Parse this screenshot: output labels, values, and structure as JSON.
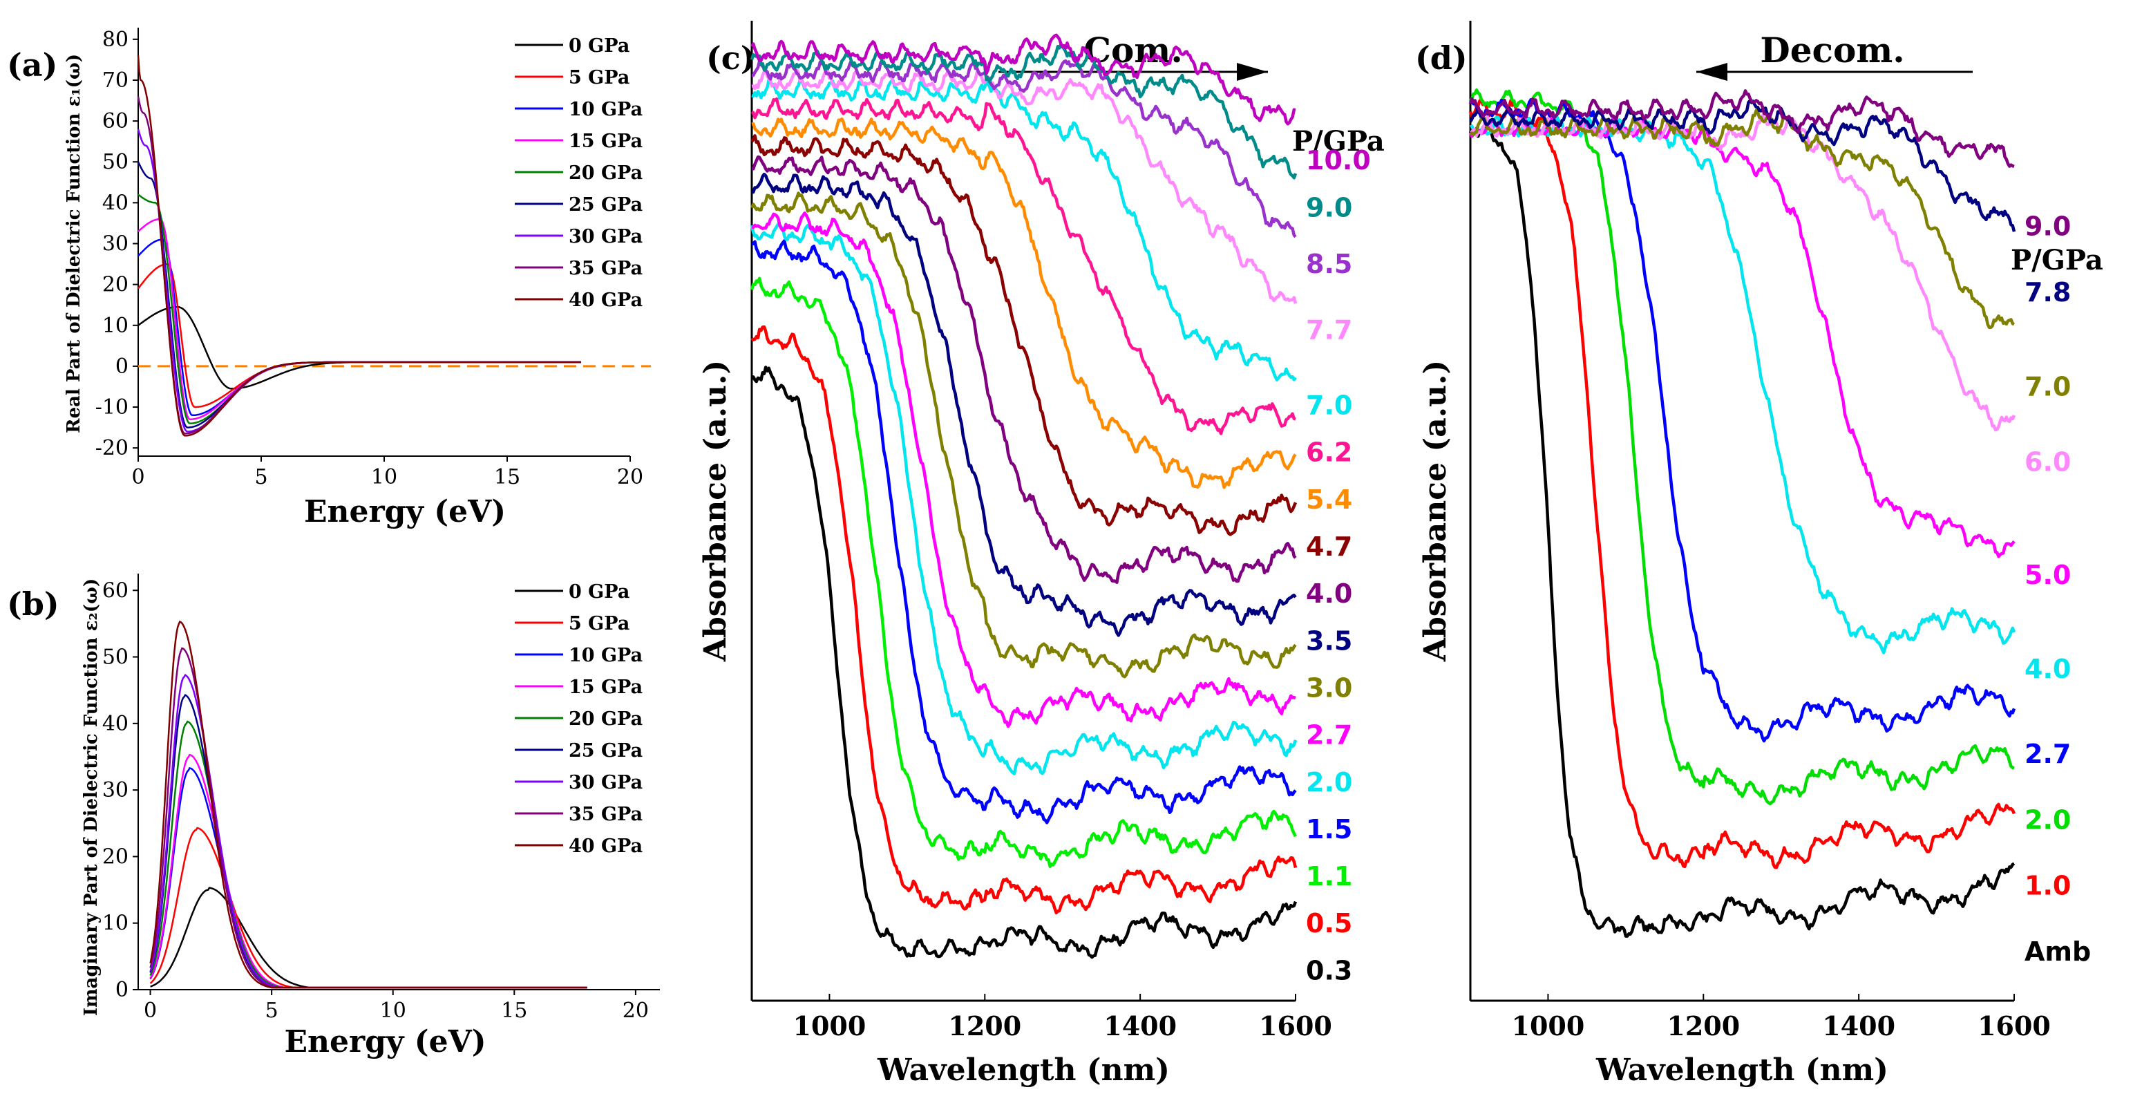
{
  "chart_data": [
    {
      "id": "a",
      "type": "line",
      "panel_label": "(a)",
      "xlabel": "Energy (eV)",
      "ylabel": "Real Part of Dielectric Function ε₁(ω)",
      "xlim": [
        0,
        20
      ],
      "ylim": [
        -22,
        82
      ],
      "xticks": [
        "0",
        "5",
        "10",
        "15",
        "20"
      ],
      "yticks": [
        "-20",
        "-10",
        "0",
        "10",
        "20",
        "30",
        "40",
        "50",
        "60",
        "70",
        "80"
      ],
      "reference_line": {
        "y": 0,
        "color": "#ff7f00",
        "style": "dashed"
      },
      "legend_position": "top-right",
      "series": [
        {
          "name": "0 GPa",
          "color": "#000000",
          "eps0": 10,
          "peak_x": 1.6,
          "peak_y": 14.5,
          "min_x": 3.8,
          "min_y": -5.5
        },
        {
          "name": "5 GPa",
          "color": "#ff0000",
          "eps0": 19,
          "peak_x": 1.2,
          "peak_y": 25,
          "min_x": 2.3,
          "min_y": -10
        },
        {
          "name": "10 GPa",
          "color": "#0000ff",
          "eps0": 27,
          "peak_x": 1.0,
          "peak_y": 31,
          "min_x": 2.2,
          "min_y": -12
        },
        {
          "name": "15 GPa",
          "color": "#ff00ff",
          "eps0": 33,
          "peak_x": 0.9,
          "peak_y": 36,
          "min_x": 2.1,
          "min_y": -13
        },
        {
          "name": "20 GPa",
          "color": "#008000",
          "eps0": 42,
          "peak_x": 0.7,
          "peak_y": 40,
          "min_x": 2.1,
          "min_y": -14
        },
        {
          "name": "25 GPa",
          "color": "#00008b",
          "eps0": 50,
          "peak_x": 0.5,
          "peak_y": 46,
          "min_x": 2.0,
          "min_y": -15
        },
        {
          "name": "30 GPa",
          "color": "#7f00ff",
          "eps0": 58,
          "peak_x": 0.3,
          "peak_y": 54,
          "min_x": 2.0,
          "min_y": -16
        },
        {
          "name": "35 GPa",
          "color": "#800080",
          "eps0": 66,
          "peak_x": 0.2,
          "peak_y": 62,
          "min_x": 1.9,
          "min_y": -16.5
        },
        {
          "name": "40 GPa",
          "color": "#800000",
          "eps0": 76,
          "peak_x": 0.1,
          "peak_y": 70,
          "min_x": 1.9,
          "min_y": -17
        }
      ]
    },
    {
      "id": "b",
      "type": "line",
      "panel_label": "(b)",
      "xlabel": "Energy (eV)",
      "ylabel": "Imaginary Part of Dielectric Function ε₂(ω)",
      "xlim": [
        -0.5,
        21
      ],
      "ylim": [
        0,
        62
      ],
      "xticks": [
        "0",
        "5",
        "10",
        "15",
        "20"
      ],
      "yticks": [
        "0",
        "10",
        "20",
        "30",
        "40",
        "50",
        "60"
      ],
      "legend_position": "top-right",
      "series": [
        {
          "name": "0 GPa",
          "color": "#000000",
          "peak_x": 2.4,
          "peak_y": 15
        },
        {
          "name": "5 GPa",
          "color": "#ff0000",
          "peak_x": 1.9,
          "peak_y": 24
        },
        {
          "name": "10 GPa",
          "color": "#0000ff",
          "peak_x": 1.6,
          "peak_y": 33
        },
        {
          "name": "15 GPa",
          "color": "#ff00ff",
          "peak_x": 1.6,
          "peak_y": 35
        },
        {
          "name": "20 GPa",
          "color": "#008000",
          "peak_x": 1.5,
          "peak_y": 40
        },
        {
          "name": "25 GPa",
          "color": "#00008b",
          "peak_x": 1.4,
          "peak_y": 44
        },
        {
          "name": "30 GPa",
          "color": "#7f00ff",
          "peak_x": 1.4,
          "peak_y": 47
        },
        {
          "name": "35 GPa",
          "color": "#800080",
          "peak_x": 1.3,
          "peak_y": 51
        },
        {
          "name": "40 GPa",
          "color": "#800000",
          "peak_x": 1.2,
          "peak_y": 55
        }
      ]
    },
    {
      "id": "c",
      "type": "line",
      "panel_label": "(c)",
      "xlabel": "Wavelength (nm)",
      "ylabel": "Absorbance (a.u.)",
      "xlim": [
        900,
        1600
      ],
      "ylim": [
        0,
        1
      ],
      "xticks": [
        "1000",
        "1200",
        "1400",
        "1600"
      ],
      "arrow_label": "Com.",
      "arrow_direction": "right",
      "legend_title": "P/GPa",
      "series": [
        {
          "name": "0.3",
          "color": "#000000",
          "start": 0.64,
          "end": 0.01,
          "edge": 1010,
          "width": 55
        },
        {
          "name": "0.5",
          "color": "#ff0000",
          "start": 0.68,
          "end": 0.06,
          "edge": 1035,
          "width": 60
        },
        {
          "name": "1.1",
          "color": "#00ee00",
          "start": 0.73,
          "end": 0.11,
          "edge": 1060,
          "width": 65
        },
        {
          "name": "1.5",
          "color": "#0000ff",
          "start": 0.77,
          "end": 0.16,
          "edge": 1085,
          "width": 70
        },
        {
          "name": "2.0",
          "color": "#00e5ee",
          "start": 0.79,
          "end": 0.21,
          "edge": 1105,
          "width": 75
        },
        {
          "name": "2.7",
          "color": "#ff00ff",
          "start": 0.8,
          "end": 0.26,
          "edge": 1120,
          "width": 80
        },
        {
          "name": "3.0",
          "color": "#808000",
          "start": 0.82,
          "end": 0.31,
          "edge": 1145,
          "width": 85
        },
        {
          "name": "3.5",
          "color": "#000080",
          "start": 0.84,
          "end": 0.36,
          "edge": 1165,
          "width": 90
        },
        {
          "name": "4.0",
          "color": "#800080",
          "start": 0.86,
          "end": 0.41,
          "edge": 1200,
          "width": 100
        },
        {
          "name": "4.7",
          "color": "#8b0000",
          "start": 0.88,
          "end": 0.46,
          "edge": 1240,
          "width": 110
        },
        {
          "name": "5.4",
          "color": "#ff8c00",
          "start": 0.9,
          "end": 0.51,
          "edge": 1290,
          "width": 120
        },
        {
          "name": "6.2",
          "color": "#ff1493",
          "start": 0.92,
          "end": 0.56,
          "edge": 1340,
          "width": 130
        },
        {
          "name": "7.0",
          "color": "#00e5ee",
          "start": 0.94,
          "end": 0.61,
          "edge": 1400,
          "width": 140
        },
        {
          "name": "7.7",
          "color": "#ff88ff",
          "start": 0.95,
          "end": 0.69,
          "edge": 1460,
          "width": 150
        },
        {
          "name": "8.5",
          "color": "#9932cc",
          "start": 0.96,
          "end": 0.76,
          "edge": 1500,
          "width": 160
        },
        {
          "name": "9.0",
          "color": "#008b8b",
          "start": 0.97,
          "end": 0.82,
          "edge": 1530,
          "width": 170
        },
        {
          "name": "10.0",
          "color": "#c000c0",
          "start": 0.98,
          "end": 0.87,
          "edge": 1560,
          "width": 180
        }
      ]
    },
    {
      "id": "d",
      "type": "line",
      "panel_label": "(d)",
      "xlabel": "Wavelength (nm)",
      "ylabel": "Absorbance (a.u.)",
      "xlim": [
        900,
        1600
      ],
      "ylim": [
        0,
        1
      ],
      "xticks": [
        "1000",
        "1200",
        "1400",
        "1600"
      ],
      "arrow_label": "Decom.",
      "arrow_direction": "left",
      "legend_title": "P/GPa",
      "series": [
        {
          "name": "Amb",
          "color": "#000000",
          "start": 0.9,
          "end": 0.03,
          "edge": 1000,
          "width": 45
        },
        {
          "name": "1.0",
          "color": "#ff0000",
          "start": 0.92,
          "end": 0.1,
          "edge": 1060,
          "width": 55
        },
        {
          "name": "2.0",
          "color": "#00dd00",
          "start": 0.93,
          "end": 0.17,
          "edge": 1110,
          "width": 60
        },
        {
          "name": "2.7",
          "color": "#0000ff",
          "start": 0.92,
          "end": 0.24,
          "edge": 1150,
          "width": 70
        },
        {
          "name": "4.0",
          "color": "#00e5ee",
          "start": 0.9,
          "end": 0.33,
          "edge": 1280,
          "width": 90
        },
        {
          "name": "5.0",
          "color": "#ff00ff",
          "start": 0.9,
          "end": 0.43,
          "edge": 1360,
          "width": 110
        },
        {
          "name": "6.0",
          "color": "#ff88ff",
          "start": 0.9,
          "end": 0.55,
          "edge": 1470,
          "width": 130
        },
        {
          "name": "7.0",
          "color": "#808000",
          "start": 0.9,
          "end": 0.63,
          "edge": 1510,
          "width": 150
        },
        {
          "name": "7.8",
          "color": "#000080",
          "start": 0.91,
          "end": 0.73,
          "edge": 1550,
          "width": 160
        },
        {
          "name": "9.0",
          "color": "#800080",
          "start": 0.92,
          "end": 0.8,
          "edge": 1580,
          "width": 170
        }
      ]
    }
  ]
}
